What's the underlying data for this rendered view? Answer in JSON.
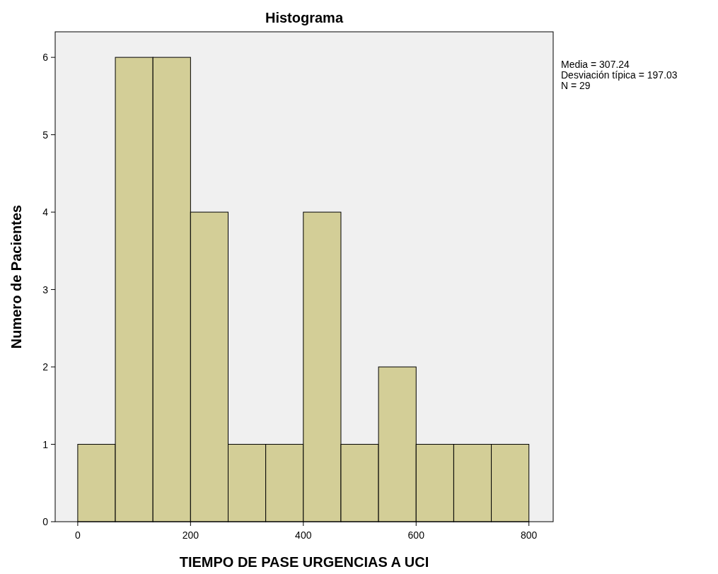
{
  "chart_data": {
    "type": "histogram",
    "title": "Histograma",
    "xlabel": "TIEMPO DE PASE URGENCIAS A UCI",
    "ylabel": "Numero de Pacientes",
    "bins": [
      0,
      66.67,
      133.33,
      200,
      266.67,
      333.33,
      400,
      466.67,
      533.33,
      600,
      666.67,
      733.33,
      800
    ],
    "values": [
      1,
      6,
      6,
      4,
      1,
      1,
      4,
      1,
      2,
      1,
      1,
      1
    ],
    "color": "#d3ce97",
    "xlim": [
      -40,
      843
    ],
    "xticks": [
      0,
      200,
      400,
      600,
      800
    ],
    "ylim": [
      0,
      6.33
    ],
    "yticks": [
      0,
      1,
      2,
      3,
      4,
      5,
      6
    ],
    "annotations": [
      "Media = 307.24",
      "Desviación típica = 197.03",
      "N = 29"
    ]
  }
}
